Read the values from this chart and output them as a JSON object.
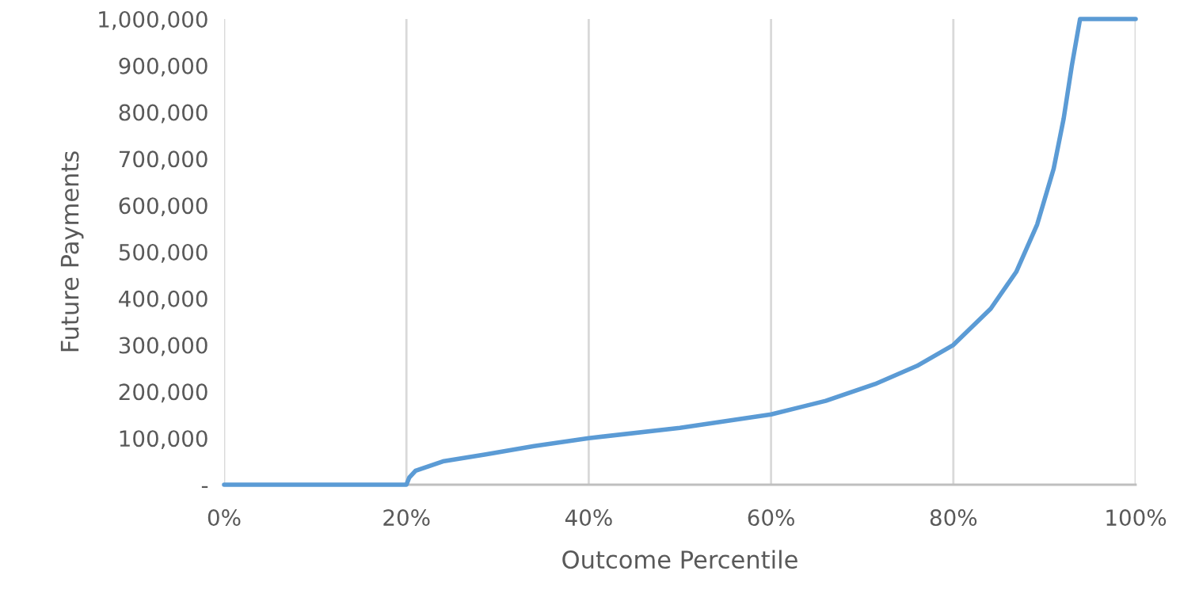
{
  "chart_data": {
    "type": "line",
    "xlabel": "Outcome Percentile",
    "ylabel": "Future Payments",
    "x": [
      0,
      10,
      20,
      20.3,
      21,
      24,
      28.7,
      34,
      40,
      50,
      60,
      66,
      71.4,
      76,
      80,
      84.1,
      86.9,
      89.2,
      91,
      92.1,
      93,
      93.9,
      100
    ],
    "series": [
      {
        "color": "#5b9bd5",
        "values": [
          0,
          0,
          0,
          15000,
          30000,
          50000,
          65000,
          83000,
          100000,
          122000,
          151000,
          180000,
          216000,
          255000,
          300000,
          378000,
          457000,
          559000,
          678000,
          786000,
          900000,
          1000000,
          1000000
        ]
      }
    ],
    "xlim": [
      0,
      100
    ],
    "xticks": [
      {
        "value": 0,
        "label": "0%"
      },
      {
        "value": 20,
        "label": "20%"
      },
      {
        "value": 40,
        "label": "40%"
      },
      {
        "value": 60,
        "label": "60%"
      },
      {
        "value": 80,
        "label": "80%"
      },
      {
        "value": 100,
        "label": "100%"
      }
    ],
    "ylim": [
      0,
      1000000
    ],
    "yticks": [
      {
        "value": 0,
        "label": "-"
      },
      {
        "value": 100000,
        "label": "100,000"
      },
      {
        "value": 200000,
        "label": "200,000"
      },
      {
        "value": 300000,
        "label": "300,000"
      },
      {
        "value": 400000,
        "label": "400,000"
      },
      {
        "value": 500000,
        "label": "500,000"
      },
      {
        "value": 600000,
        "label": "600,000"
      },
      {
        "value": 700000,
        "label": "700,000"
      },
      {
        "value": 800000,
        "label": "800,000"
      },
      {
        "value": 900000,
        "label": "900,000"
      },
      {
        "value": 1000000,
        "label": "1,000,000"
      }
    ],
    "grid": "x",
    "marker": "none",
    "line_style": "solid",
    "legend": false
  }
}
